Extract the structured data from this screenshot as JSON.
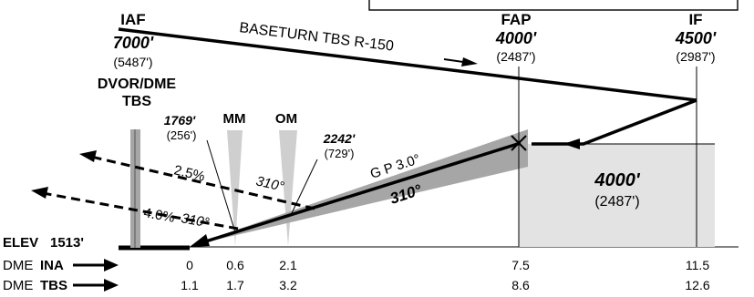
{
  "fixes": {
    "iaf": {
      "name": "IAF",
      "altitude": "7000'",
      "height": "(5487')"
    },
    "fap": {
      "name": "FAP",
      "altitude": "4000'",
      "height": "(2487')"
    },
    "if_fix": {
      "name": "IF",
      "altitude": "4500'",
      "height": "(2987')"
    }
  },
  "navaid": {
    "line1": "DVOR/DME",
    "line2": "TBS"
  },
  "baseturn_label": "BASETURN TBS R-150",
  "markers": {
    "mm": "MM",
    "om": "OM"
  },
  "obstacles": [
    {
      "altitude": "1769'",
      "height": "(256')"
    },
    {
      "altitude": "2242'",
      "height": "(729')"
    }
  ],
  "glidepath": {
    "label": "G P 3.0°",
    "course": "310°"
  },
  "missed_approach": [
    {
      "gradient": "2.5%",
      "course": "310°"
    },
    {
      "gradient": "4.0%",
      "course": "310°"
    }
  ],
  "intermediate_box": {
    "altitude": "4000'",
    "height": "(2487')"
  },
  "elevation": {
    "label": "ELEV",
    "value": "1513'"
  },
  "dme_rows": [
    {
      "label": "DME",
      "station": "INA",
      "values": [
        "0",
        "0.6",
        "2.1",
        "7.5",
        "11.5"
      ]
    },
    {
      "label": "DME",
      "station": "TBS",
      "values": [
        "1.1",
        "1.7",
        "3.2",
        "8.6",
        "12.6"
      ]
    }
  ],
  "colors": {
    "line": "#000000",
    "glidepath_fill": "#a6a6a6",
    "box_fill": "#e3e3e3",
    "marker_fill": "#cfcfcf"
  }
}
